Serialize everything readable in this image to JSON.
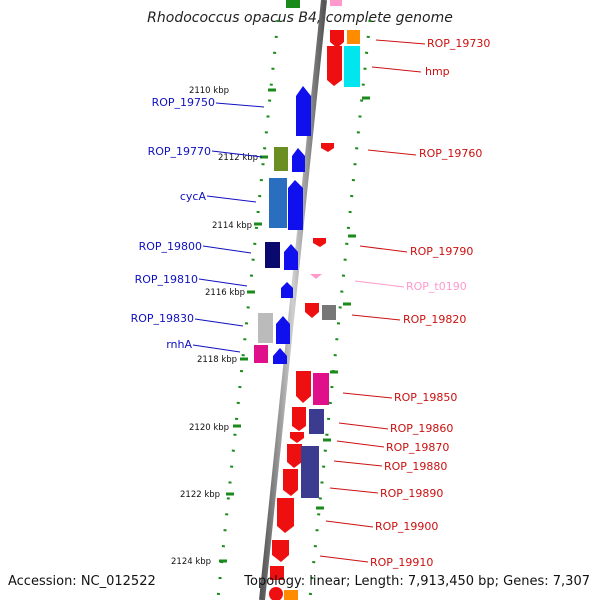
{
  "title": "Rhodococcus opacus B4, complete genome",
  "footer": {
    "accession": "Accession: NC_012522",
    "summary": "Topology: linear; Length: 7,913,450 bp; Genes: 7,307"
  },
  "axis_ticks": [
    {
      "label": "2110 kbp"
    },
    {
      "label": "2112 kbp"
    },
    {
      "label": "2114 kbp"
    },
    {
      "label": "2116 kbp"
    },
    {
      "label": "2118 kbp"
    },
    {
      "label": "2120 kbp"
    },
    {
      "label": "2122 kbp"
    },
    {
      "label": "2124 kbp"
    }
  ],
  "left_labels": [
    "ROP_19750",
    "ROP_19770",
    "cycA",
    "ROP_19800",
    "ROP_19810",
    "ROP_19830",
    "rnhA"
  ],
  "right_labels": [
    "ROP_19730",
    "hmp",
    "ROP_19760",
    "ROP_19790",
    "ROP_t0190",
    "ROP_19820",
    "ROP_19850",
    "ROP_19860",
    "ROP_19870",
    "ROP_19880",
    "ROP_19890",
    "ROP_19900",
    "ROP_19910"
  ],
  "colors": {
    "forward_gene": "#1010ee",
    "reverse_gene": "#ee1010",
    "trna": "#ff99cc",
    "left_label": "#1010c0",
    "right_label": "#cc1010"
  }
}
